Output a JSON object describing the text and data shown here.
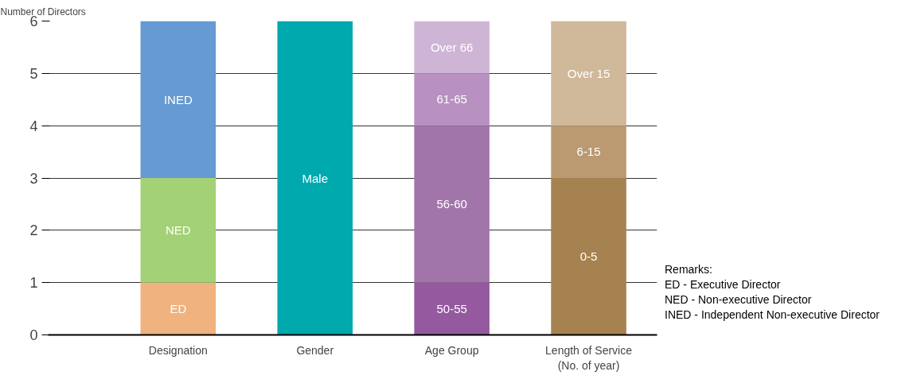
{
  "chart_data": {
    "type": "bar",
    "stacked": true,
    "ylabel": "Number of Directors",
    "categories": [
      "Designation",
      "Gender",
      "Age Group",
      "Length of Service\n(No. of year)"
    ],
    "series": [
      {
        "name": "ED",
        "color": "#f0b27e",
        "values": [
          1,
          null,
          null,
          null
        ]
      },
      {
        "name": "NED",
        "color": "#a3d175",
        "values": [
          2,
          null,
          null,
          null
        ]
      },
      {
        "name": "INED",
        "color": "#659ad2",
        "values": [
          3,
          null,
          null,
          null
        ]
      },
      {
        "name": "Male",
        "color": "#00a9ae",
        "values": [
          null,
          6,
          null,
          null
        ]
      },
      {
        "name": "50-55",
        "color": "#94599f",
        "values": [
          null,
          null,
          1,
          null
        ]
      },
      {
        "name": "56-60",
        "color": "#a275aa",
        "values": [
          null,
          null,
          3,
          null
        ]
      },
      {
        "name": "61-65",
        "color": "#b891c0",
        "values": [
          null,
          null,
          1,
          null
        ]
      },
      {
        "name": "Over 66",
        "color": "#cfb5d5",
        "values": [
          null,
          null,
          1,
          null
        ]
      },
      {
        "name": "0-5",
        "color": "#a58250",
        "values": [
          null,
          null,
          null,
          3
        ]
      },
      {
        "name": "6-15",
        "color": "#bb9a72",
        "values": [
          null,
          null,
          null,
          1
        ]
      },
      {
        "name": "Over 15",
        "color": "#d0b89a",
        "values": [
          null,
          null,
          null,
          2
        ]
      }
    ],
    "ylim": [
      0,
      6
    ],
    "yticks": [
      0,
      1,
      2,
      3,
      4,
      5,
      6
    ],
    "grid": "y",
    "annotations": [
      "Remarks:",
      "ED - Executive Director",
      "NED - Non-executive Director",
      "INED - Independent Non-executive Director"
    ]
  }
}
